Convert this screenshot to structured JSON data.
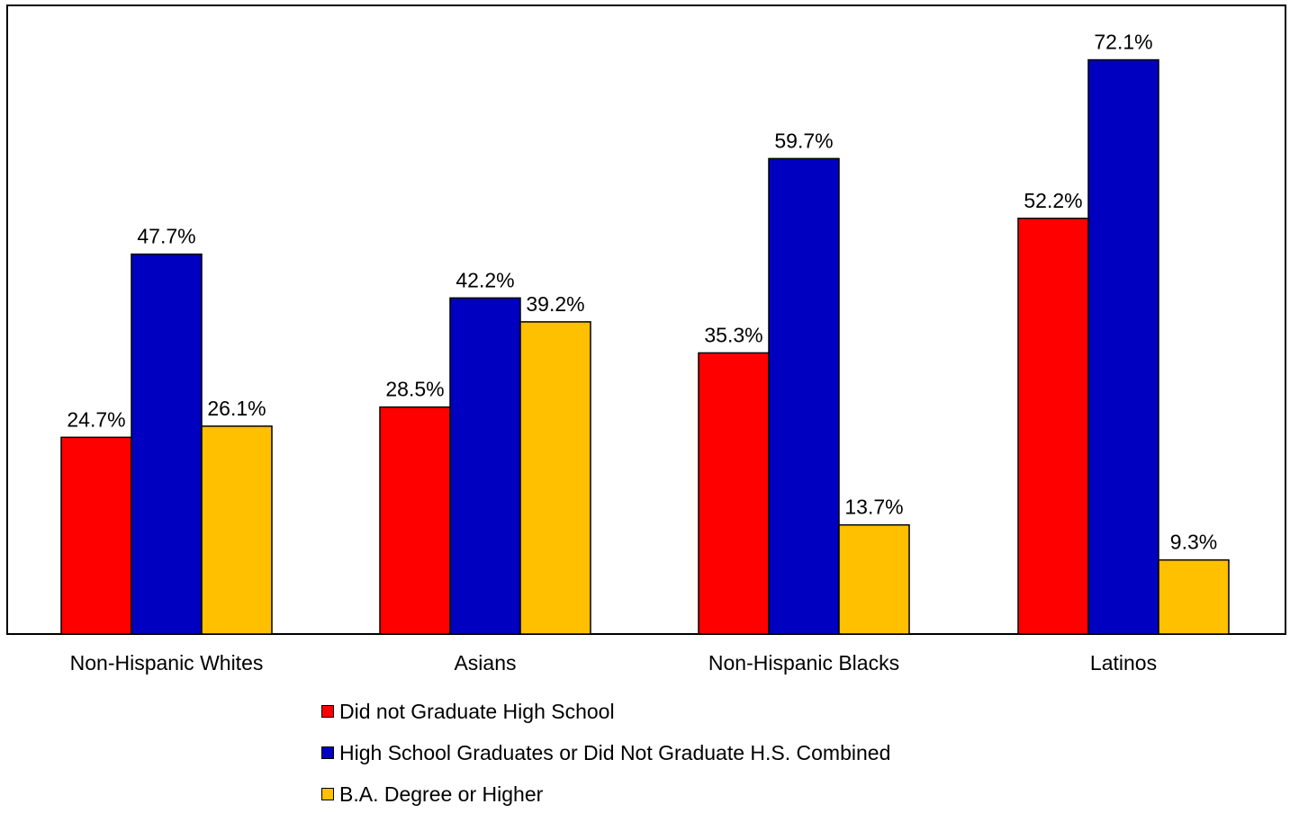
{
  "chart_data": {
    "type": "bar",
    "categories": [
      "Non-Hispanic Whites",
      "Asians",
      "Non-Hispanic Blacks",
      "Latinos"
    ],
    "series": [
      {
        "name": "Did not Graduate High School",
        "color": "#ff0000",
        "values": [
          24.7,
          28.5,
          35.3,
          52.2
        ],
        "labels": [
          "24.7%",
          "28.5%",
          "35.3%",
          "52.2%"
        ]
      },
      {
        "name": "High School Graduates or Did Not Graduate H.S. Combined",
        "color": "#0000c0",
        "values": [
          47.7,
          42.2,
          59.7,
          72.1
        ],
        "labels": [
          "47.7%",
          "42.2%",
          "59.7%",
          "72.1%"
        ]
      },
      {
        "name": "B.A. Degree or Higher",
        "color": "#ffc000",
        "values": [
          26.1,
          39.2,
          13.7,
          9.3
        ],
        "labels": [
          "26.1%",
          "39.2%",
          "13.7%",
          "9.3%"
        ]
      }
    ],
    "title": "",
    "xlabel": "",
    "ylabel": "",
    "ylim": [
      0,
      80
    ],
    "grid": false,
    "legend_position": "bottom"
  }
}
